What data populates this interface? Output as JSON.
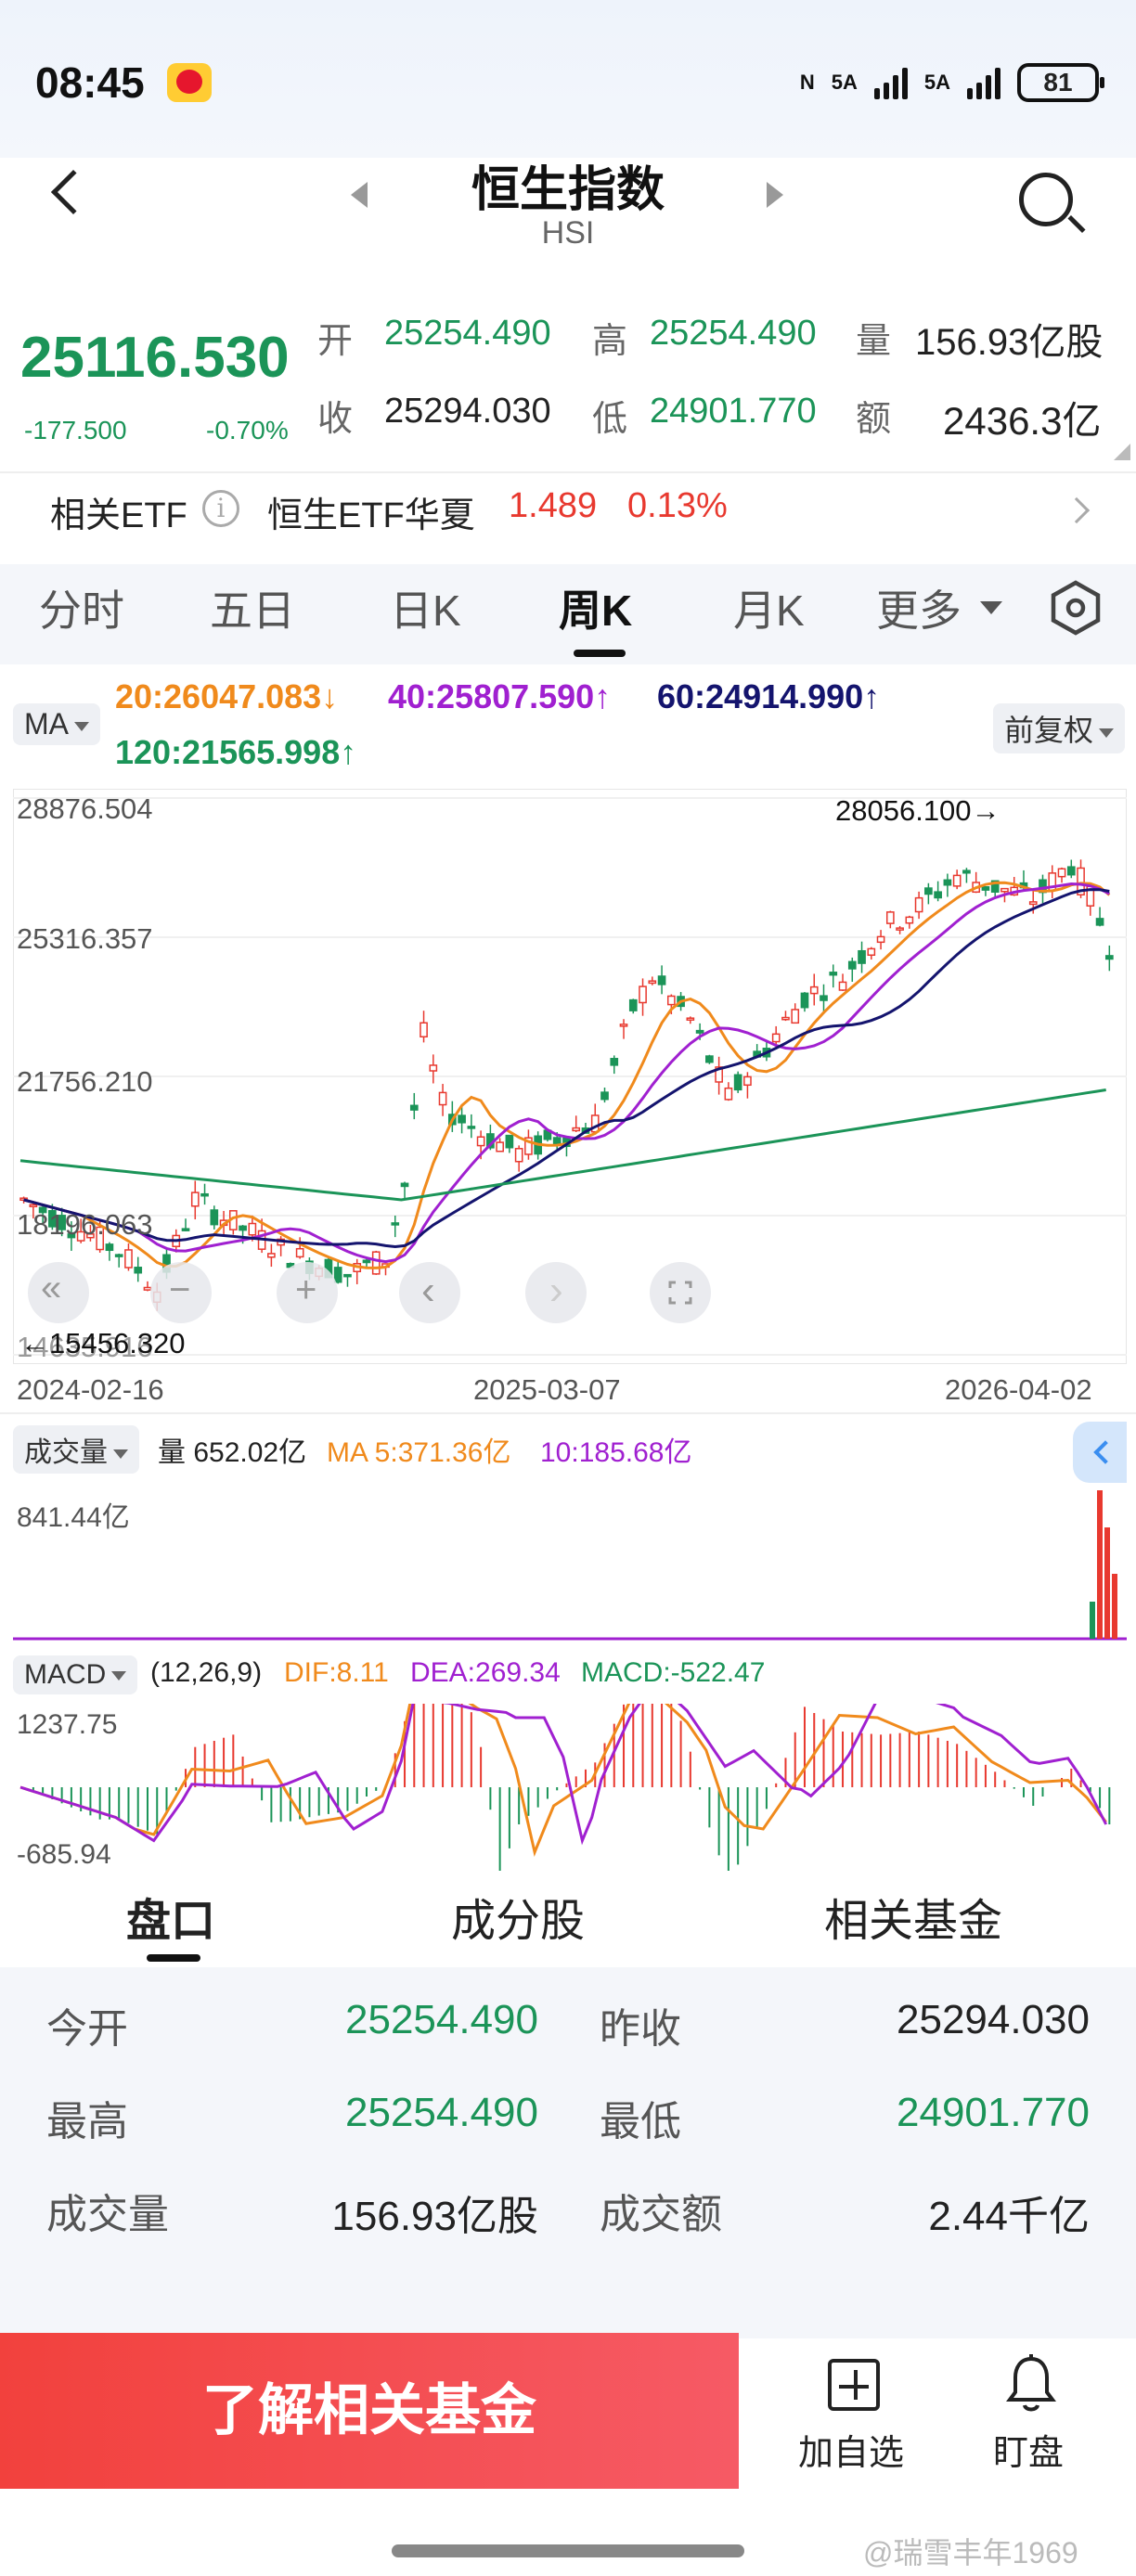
{
  "status_bar": {
    "time": "08:45",
    "network1": "5A",
    "network2": "5A",
    "battery": "81"
  },
  "header": {
    "title": "恒生指数",
    "code": "HSI"
  },
  "quote": {
    "price": "25116.530",
    "change": "-177.500",
    "change_pct": "-0.70%",
    "open_label": "开",
    "open": "25254.490",
    "high_label": "高",
    "high": "25254.490",
    "volume_label": "量",
    "volume": "156.93亿股",
    "close_label": "收",
    "close": "25294.030",
    "low_label": "低",
    "low": "24901.770",
    "amount_label": "额",
    "amount": "2436.3亿"
  },
  "etf": {
    "label": "相关ETF",
    "name": "恒生ETF华夏",
    "price": "1.489",
    "change_pct": "0.13%"
  },
  "tabs": [
    "分时",
    "五日",
    "日K",
    "周K",
    "月K",
    "更多"
  ],
  "active_tab": "周K",
  "ma_bar": {
    "selector": "MA",
    "ma20": "20:26047.083↓",
    "ma40": "40:25807.590↑",
    "ma60": "60:24914.990↑",
    "ma120": "120:21565.998↑",
    "adjust": "前复权"
  },
  "chart_data": [
    {
      "type": "candlestick",
      "title": "恒生指数 周K",
      "y_ticks": [
        "28876.504",
        "25316.357",
        "21756.210",
        "18196.063",
        "14635.916"
      ],
      "x_ticks": [
        "2024-02-16",
        "2025-03-07",
        "2026-04-02"
      ],
      "max_annotation": "28056.100→",
      "min_annotation": "←15456.320",
      "series": [
        {
          "name": "MA20",
          "last": 26047.083,
          "color": "#f08a1c"
        },
        {
          "name": "MA40",
          "last": 25807.59,
          "color": "#a020d0"
        },
        {
          "name": "MA60",
          "last": 24914.99,
          "color": "#14146e"
        },
        {
          "name": "MA120",
          "last": 21565.998,
          "color": "#1b9458"
        }
      ]
    },
    {
      "type": "bar",
      "title": "成交量",
      "volume": "量 652.02亿",
      "ma5": "MA 5:371.36亿",
      "ma10": "10:185.68亿",
      "y_max": "841.44亿"
    },
    {
      "type": "line",
      "title": "MACD",
      "params": "(12,26,9)",
      "dif": "DIF:8.11",
      "dea": "DEA:269.34",
      "macd": "MACD:-522.47",
      "y_ticks": [
        "1237.75",
        "-685.94"
      ]
    }
  ],
  "controls": {
    "rewind": "«",
    "minus": "−",
    "plus": "+",
    "prev": "‹",
    "next": "›"
  },
  "bottom_tabs": [
    "盘口",
    "成分股",
    "相关基金"
  ],
  "panel": {
    "open_label": "今开",
    "open": "25254.490",
    "prev_close_label": "昨收",
    "prev_close": "25294.030",
    "high_label": "最高",
    "high": "25254.490",
    "low_label": "最低",
    "low": "24901.770",
    "volume_label": "成交量",
    "volume": "156.93亿股",
    "amount_label": "成交额",
    "amount": "2.44千亿"
  },
  "actions": {
    "cta": "了解相关基金",
    "watchlist": "加自选",
    "alert": "盯盘"
  },
  "watermark": "@瑞雪丰年1969",
  "colors": {
    "up": "#e8392f",
    "down": "#1b9458",
    "accent": "#f2413d"
  }
}
